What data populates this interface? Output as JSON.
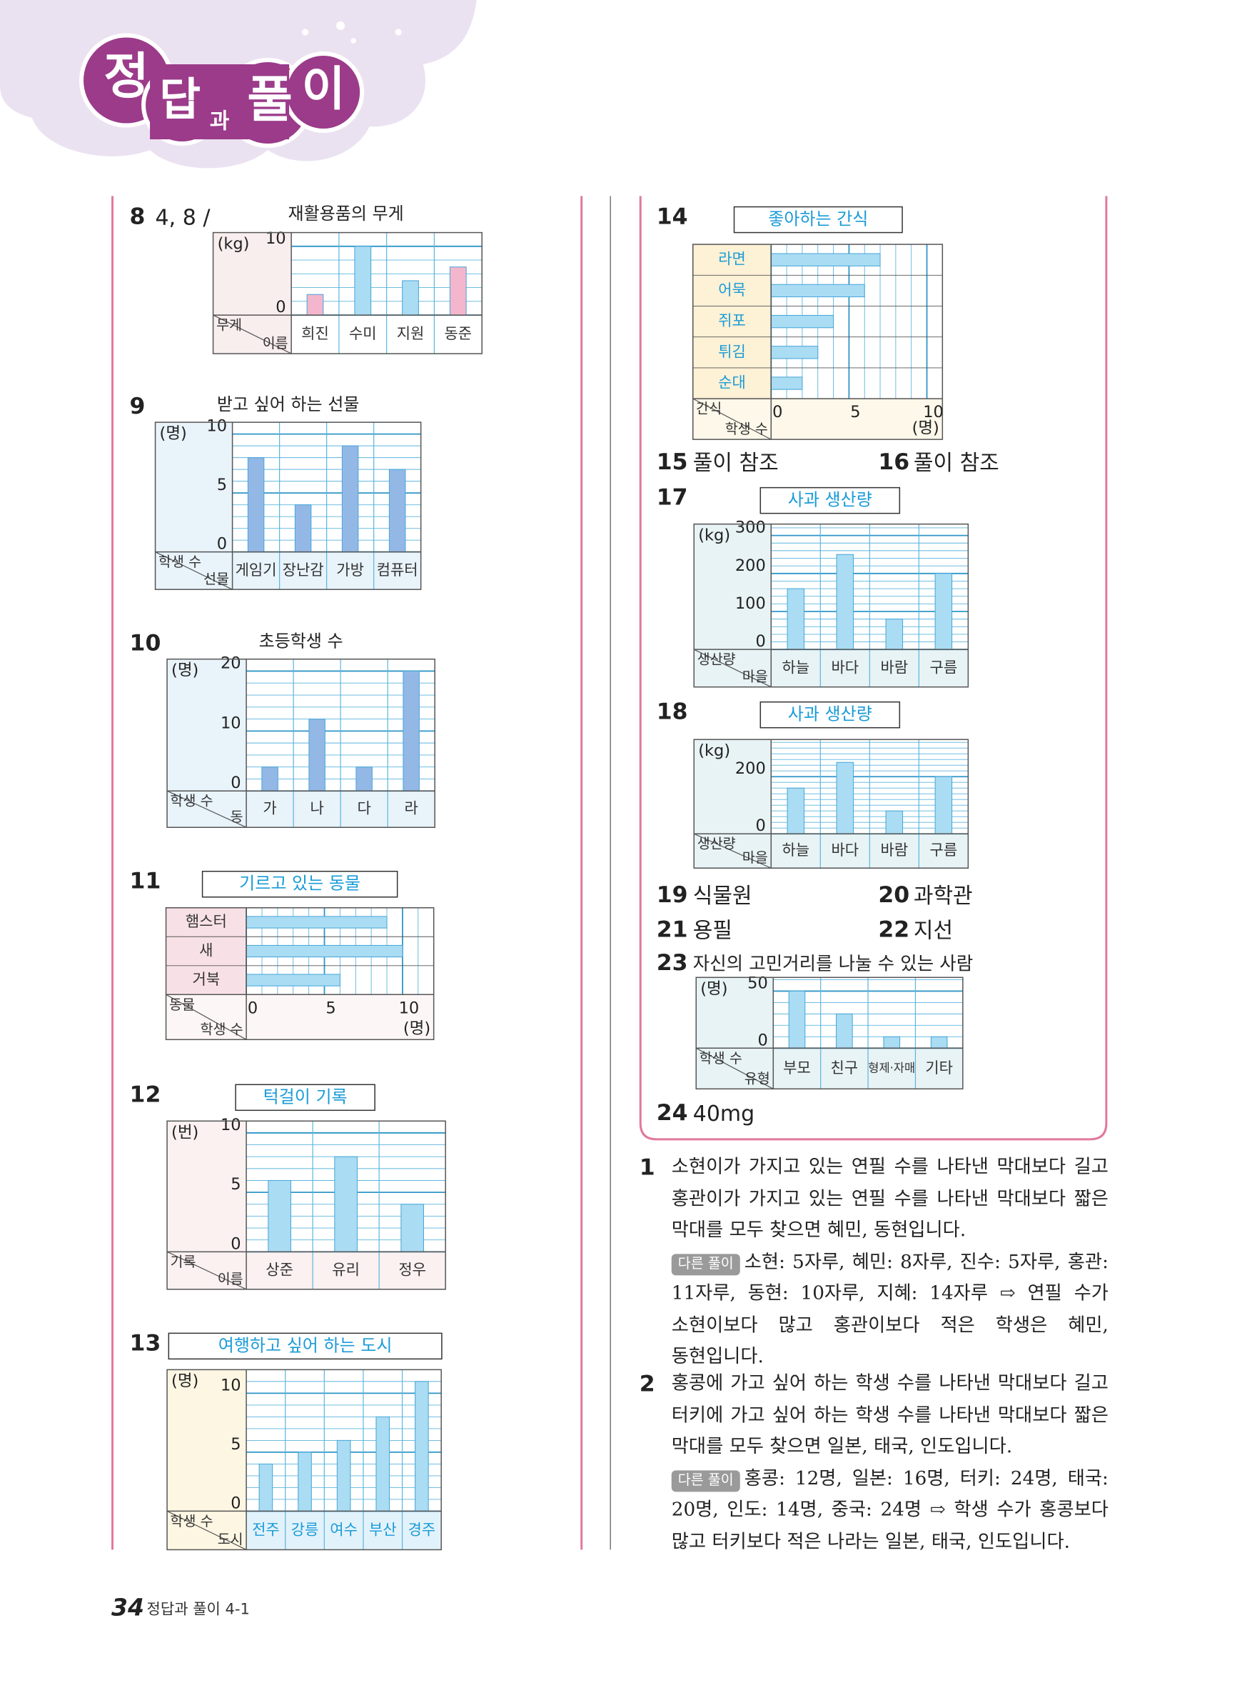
{
  "header": {
    "logo": [
      "정",
      "답",
      "과",
      "풀",
      "이"
    ]
  },
  "problems": [
    {
      "number": "8",
      "answer": "4, 8 /",
      "chart": {
        "type": "bar",
        "title": "재활용품의 무게",
        "unit": "(kg)",
        "corner": [
          "무게",
          "이름"
        ],
        "categories": [
          "희진",
          "수미",
          "지원",
          "동준"
        ],
        "values": [
          3,
          10,
          5,
          7
        ],
        "ylim": [
          0,
          12
        ],
        "yticks": [
          0,
          10
        ],
        "minor_step": 2,
        "color": "#aadcf3",
        "colors": [
          "#f4b6cc",
          "#aadcf3",
          "#aadcf3",
          "#f4b6cc"
        ],
        "panel_color": "#f9eeee",
        "label_color": "#ffffff"
      }
    },
    {
      "number": "9",
      "chart": {
        "type": "bar",
        "title": "받고 싶어 하는 선물",
        "unit": "(명)",
        "corner": [
          "학생 수",
          "선물"
        ],
        "categories": [
          "게임기",
          "장난감",
          "가방",
          "컴퓨터"
        ],
        "values": [
          8,
          4,
          9,
          7
        ],
        "ylim": [
          0,
          11
        ],
        "yticks": [
          0,
          5,
          10
        ],
        "minor_step": 1,
        "color": "#93b8e6",
        "panel_color": "#e8f3fa",
        "label_color": "#e8f3fa"
      }
    },
    {
      "number": "10",
      "chart": {
        "type": "bar",
        "title": "초등학생 수",
        "unit": "(명)",
        "corner": [
          "학생 수",
          "동"
        ],
        "categories": [
          "가",
          "나",
          "다",
          "라"
        ],
        "values": [
          4,
          12,
          4,
          20
        ],
        "ylim": [
          0,
          22
        ],
        "yticks": [
          0,
          10,
          20
        ],
        "minor_step": 2,
        "color": "#93b8e6",
        "panel_color": "#e8f3fa",
        "label_color": "#e8f3fa"
      }
    },
    {
      "number": "11",
      "chart": {
        "type": "bar",
        "orientation": "horizontal",
        "title": "기르고 있는 동물",
        "title_box": true,
        "unit": "(명)",
        "corner": [
          "동물",
          "학생 수"
        ],
        "categories": [
          "햄스터",
          "새",
          "거북"
        ],
        "values": [
          9,
          10,
          6
        ],
        "xlim": [
          0,
          12
        ],
        "xticks": [
          0,
          5,
          10
        ],
        "minor_step": 1,
        "color": "#aadcf3",
        "panel_color": "#f8e1e6",
        "label_color": "#fdf6f6"
      }
    },
    {
      "number": "12",
      "chart": {
        "type": "bar",
        "title": "턱걸이 기록",
        "title_box": true,
        "unit": "(번)",
        "corner": [
          "기록",
          "이름"
        ],
        "categories": [
          "상준",
          "유리",
          "정우"
        ],
        "values": [
          6,
          8,
          4
        ],
        "ylim": [
          0,
          11
        ],
        "yticks": [
          0,
          5,
          10
        ],
        "minor_step": 1,
        "color": "#aadcf3",
        "panel_color": "#fbf1f1",
        "label_color": "#fbf1f1"
      }
    },
    {
      "number": "13",
      "chart": {
        "type": "bar",
        "title": "여행하고 싶어 하는 도시",
        "title_box": true,
        "unit": "(명)",
        "corner": [
          "학생 수",
          "도시"
        ],
        "categories": [
          "전주",
          "강릉",
          "여수",
          "부산",
          "경주"
        ],
        "values": [
          4,
          5,
          6,
          8,
          11
        ],
        "ylim": [
          0,
          12
        ],
        "yticks": [
          0,
          5,
          10
        ],
        "minor_step": 1,
        "color": "#aadcf3",
        "panel_color": "#fdf6e3",
        "label_color": "#e2f2fb",
        "label_text_color": "#1a9bd7"
      }
    },
    {
      "number": "14",
      "chart": {
        "type": "bar",
        "orientation": "horizontal",
        "title": "좋아하는 간식",
        "title_box": true,
        "unit": "(명)",
        "corner": [
          "간식",
          "학생 수"
        ],
        "categories": [
          "라면",
          "어묵",
          "쥐포",
          "튀김",
          "순대"
        ],
        "values": [
          7,
          6,
          4,
          3,
          2
        ],
        "xlim": [
          0,
          11
        ],
        "xticks": [
          0,
          5,
          10
        ],
        "minor_step": 1,
        "color": "#aadcf3",
        "panel_color": "#fdf1d6",
        "label_color": "#fdf8ea",
        "label_text_color": "#1a9bd7"
      }
    },
    {
      "number": "15",
      "answer": "풀이 참조"
    },
    {
      "number": "16",
      "answer": "풀이 참조"
    },
    {
      "number": "17",
      "chart": {
        "type": "bar",
        "title": "사과 생산량",
        "title_box": true,
        "unit": "(kg)",
        "corner": [
          "생산량",
          "마을"
        ],
        "categories": [
          "하늘",
          "바다",
          "바람",
          "구름"
        ],
        "values": [
          160,
          250,
          80,
          200
        ],
        "ylim": [
          0,
          330
        ],
        "yticks": [
          0,
          100,
          200,
          300
        ],
        "minor_step": 20,
        "color": "#aadcf3",
        "panel_color": "#e8f3f5",
        "label_color": "#e8f3f5"
      }
    },
    {
      "number": "18",
      "chart": {
        "type": "bar",
        "title": "사과 생산량",
        "title_box": true,
        "unit": "(kg)",
        "corner": [
          "생산량",
          "마을"
        ],
        "categories": [
          "하늘",
          "바다",
          "바람",
          "구름"
        ],
        "values": [
          160,
          250,
          80,
          200
        ],
        "ylim": [
          0,
          330
        ],
        "yticks": [
          0,
          200
        ],
        "minor_step": 20,
        "color": "#aadcf3",
        "panel_color": "#e8f3f5",
        "label_color": "#e8f3f5"
      }
    },
    {
      "number": "19",
      "answer": "식물원"
    },
    {
      "number": "20",
      "answer": "과학관"
    },
    {
      "number": "21",
      "answer": "용필"
    },
    {
      "number": "22",
      "answer": "지선"
    },
    {
      "number": "23",
      "answer": "자신의 고민거리를 나눌 수 있는 사람",
      "chart": {
        "type": "bar",
        "unit": "(명)",
        "corner": [
          "학생 수",
          "유형"
        ],
        "categories": [
          "부모",
          "친구",
          "형제·자매",
          "기타"
        ],
        "values": [
          50,
          30,
          10,
          10
        ],
        "ylim": [
          0,
          62
        ],
        "yticks": [
          0,
          50
        ],
        "minor_step": 10,
        "color": "#aadcf3",
        "panel_color": "#e8f3f5",
        "label_color": "#e8f3f5"
      }
    },
    {
      "number": "24",
      "answer": "40mg"
    }
  ],
  "solutions": [
    {
      "number": "1",
      "text": "소현이가 가지고 있는 연필 수를 나타낸 막대보다 길고 홍관이가 가지고 있는 연필 수를 나타낸 막대보다 짧은 막대를 모두 찾으면 혜민, 동현입니다.",
      "alt_label": "다른 풀이",
      "alt_text": "소현: 5자루, 혜민: 8자루, 진수: 5자루, 홍관: 11자루, 동현: 10자루, 지혜: 14자루 ⇨ 연필 수가 소현이보다 많고 홍관이보다 적은 학생은 혜민, 동현입니다."
    },
    {
      "number": "2",
      "text": "홍콩에 가고 싶어 하는 학생 수를 나타낸 막대보다 길고 터키에 가고 싶어 하는 학생 수를 나타낸 막대보다 짧은 막대를 모두 찾으면 일본, 태국, 인도입니다.",
      "alt_label": "다른 풀이",
      "alt_text": "홍콩: 12명, 일본: 16명, 터키: 24명, 태국: 20명, 인도: 14명, 중국: 24명 ⇨ 학생 수가 홍콩보다 많고 터키보다 적은 나라는 일본, 태국, 인도입니다."
    }
  ],
  "footer": {
    "page": "34",
    "title": "정답과 풀이 4-1"
  }
}
